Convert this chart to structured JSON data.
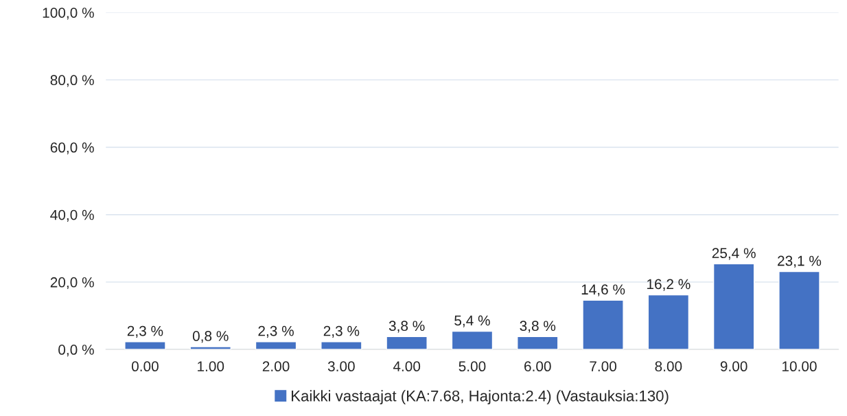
{
  "chart_data": {
    "type": "bar",
    "categories": [
      "0.00",
      "1.00",
      "2.00",
      "3.00",
      "4.00",
      "5.00",
      "6.00",
      "7.00",
      "8.00",
      "9.00",
      "10.00"
    ],
    "series": [
      {
        "name": "Kaikki vastaajat (KA:7.68, Hajonta:2.4) (Vastauksia:130)",
        "color": "#4472c4",
        "values": [
          2.3,
          0.8,
          2.3,
          2.3,
          3.8,
          5.4,
          3.8,
          14.6,
          16.2,
          25.4,
          23.1
        ],
        "value_labels": [
          "2,3 %",
          "0,8 %",
          "2,3 %",
          "2,3 %",
          "3,8 %",
          "5,4 %",
          "3,8 %",
          "14,6 %",
          "16,2 %",
          "25,4 %",
          "23,1 %"
        ]
      }
    ],
    "ylim": [
      0,
      100
    ],
    "yticks": [
      {
        "value": 0,
        "label": "0,0 %"
      },
      {
        "value": 20,
        "label": "20,0 %"
      },
      {
        "value": 40,
        "label": "40,0 %"
      },
      {
        "value": 60,
        "label": "60,0 %"
      },
      {
        "value": 80,
        "label": "80,0 %"
      },
      {
        "value": 100,
        "label": "100,0 %"
      }
    ],
    "grid": "y",
    "legend": "bottom"
  }
}
